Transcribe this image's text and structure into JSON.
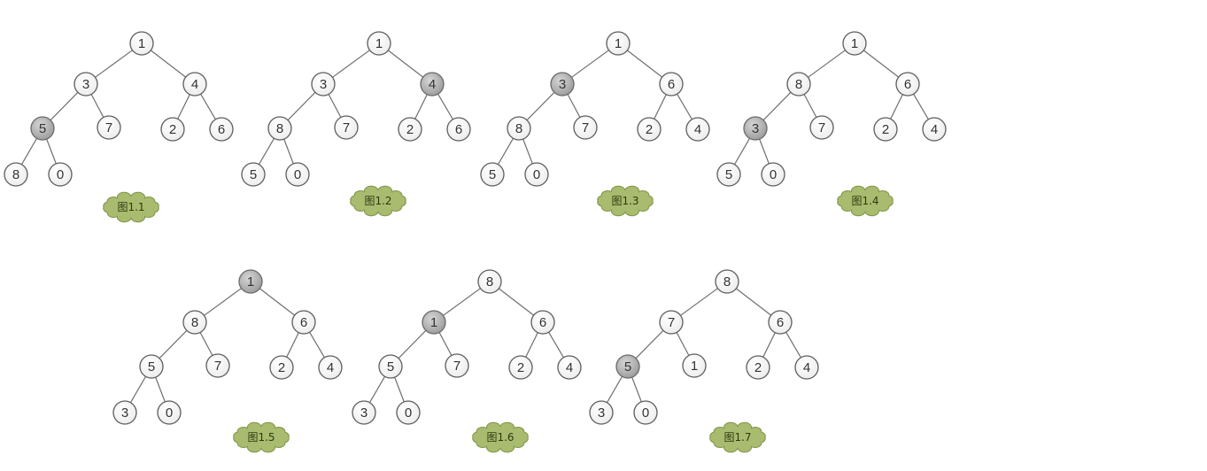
{
  "trees": [
    {
      "caption": "图1.1",
      "nodes": [
        {
          "value": "1",
          "highlight": false
        },
        {
          "value": "3",
          "highlight": false
        },
        {
          "value": "4",
          "highlight": false
        },
        {
          "value": "5",
          "highlight": true
        },
        {
          "value": "7",
          "highlight": false
        },
        {
          "value": "2",
          "highlight": false
        },
        {
          "value": "6",
          "highlight": false
        },
        {
          "value": "8",
          "highlight": false
        },
        {
          "value": "0",
          "highlight": false
        }
      ]
    },
    {
      "caption": "图1.2",
      "nodes": [
        {
          "value": "1",
          "highlight": false
        },
        {
          "value": "3",
          "highlight": false
        },
        {
          "value": "4",
          "highlight": true
        },
        {
          "value": "8",
          "highlight": false
        },
        {
          "value": "7",
          "highlight": false
        },
        {
          "value": "2",
          "highlight": false
        },
        {
          "value": "6",
          "highlight": false
        },
        {
          "value": "5",
          "highlight": false
        },
        {
          "value": "0",
          "highlight": false
        }
      ]
    },
    {
      "caption": "图1.3",
      "nodes": [
        {
          "value": "1",
          "highlight": false
        },
        {
          "value": "3",
          "highlight": true
        },
        {
          "value": "6",
          "highlight": false
        },
        {
          "value": "8",
          "highlight": false
        },
        {
          "value": "7",
          "highlight": false
        },
        {
          "value": "2",
          "highlight": false
        },
        {
          "value": "4",
          "highlight": false
        },
        {
          "value": "5",
          "highlight": false
        },
        {
          "value": "0",
          "highlight": false
        }
      ]
    },
    {
      "caption": "图1.4",
      "nodes": [
        {
          "value": "1",
          "highlight": false
        },
        {
          "value": "8",
          "highlight": false
        },
        {
          "value": "6",
          "highlight": false
        },
        {
          "value": "3",
          "highlight": true
        },
        {
          "value": "7",
          "highlight": false
        },
        {
          "value": "2",
          "highlight": false
        },
        {
          "value": "4",
          "highlight": false
        },
        {
          "value": "5",
          "highlight": false
        },
        {
          "value": "0",
          "highlight": false
        }
      ]
    },
    {
      "caption": "图1.5",
      "nodes": [
        {
          "value": "1",
          "highlight": true
        },
        {
          "value": "8",
          "highlight": false
        },
        {
          "value": "6",
          "highlight": false
        },
        {
          "value": "5",
          "highlight": false
        },
        {
          "value": "7",
          "highlight": false
        },
        {
          "value": "2",
          "highlight": false
        },
        {
          "value": "4",
          "highlight": false
        },
        {
          "value": "3",
          "highlight": false
        },
        {
          "value": "0",
          "highlight": false
        }
      ]
    },
    {
      "caption": "图1.6",
      "nodes": [
        {
          "value": "8",
          "highlight": false
        },
        {
          "value": "1",
          "highlight": true
        },
        {
          "value": "6",
          "highlight": false
        },
        {
          "value": "5",
          "highlight": false
        },
        {
          "value": "7",
          "highlight": false
        },
        {
          "value": "2",
          "highlight": false
        },
        {
          "value": "4",
          "highlight": false
        },
        {
          "value": "3",
          "highlight": false
        },
        {
          "value": "0",
          "highlight": false
        }
      ]
    },
    {
      "caption": "图1.7",
      "nodes": [
        {
          "value": "8",
          "highlight": false
        },
        {
          "value": "7",
          "highlight": false
        },
        {
          "value": "6",
          "highlight": false
        },
        {
          "value": "5",
          "highlight": true
        },
        {
          "value": "1",
          "highlight": false
        },
        {
          "value": "2",
          "highlight": false
        },
        {
          "value": "4",
          "highlight": false
        },
        {
          "value": "3",
          "highlight": false
        },
        {
          "value": "0",
          "highlight": false
        }
      ]
    }
  ],
  "colors": {
    "background": "#ffffff",
    "node_fill": "#fbfbfb",
    "node_highlight": "#a8a8a8",
    "edge": "#6f6f6f",
    "caption_cloud": "#a9bb6e"
  }
}
